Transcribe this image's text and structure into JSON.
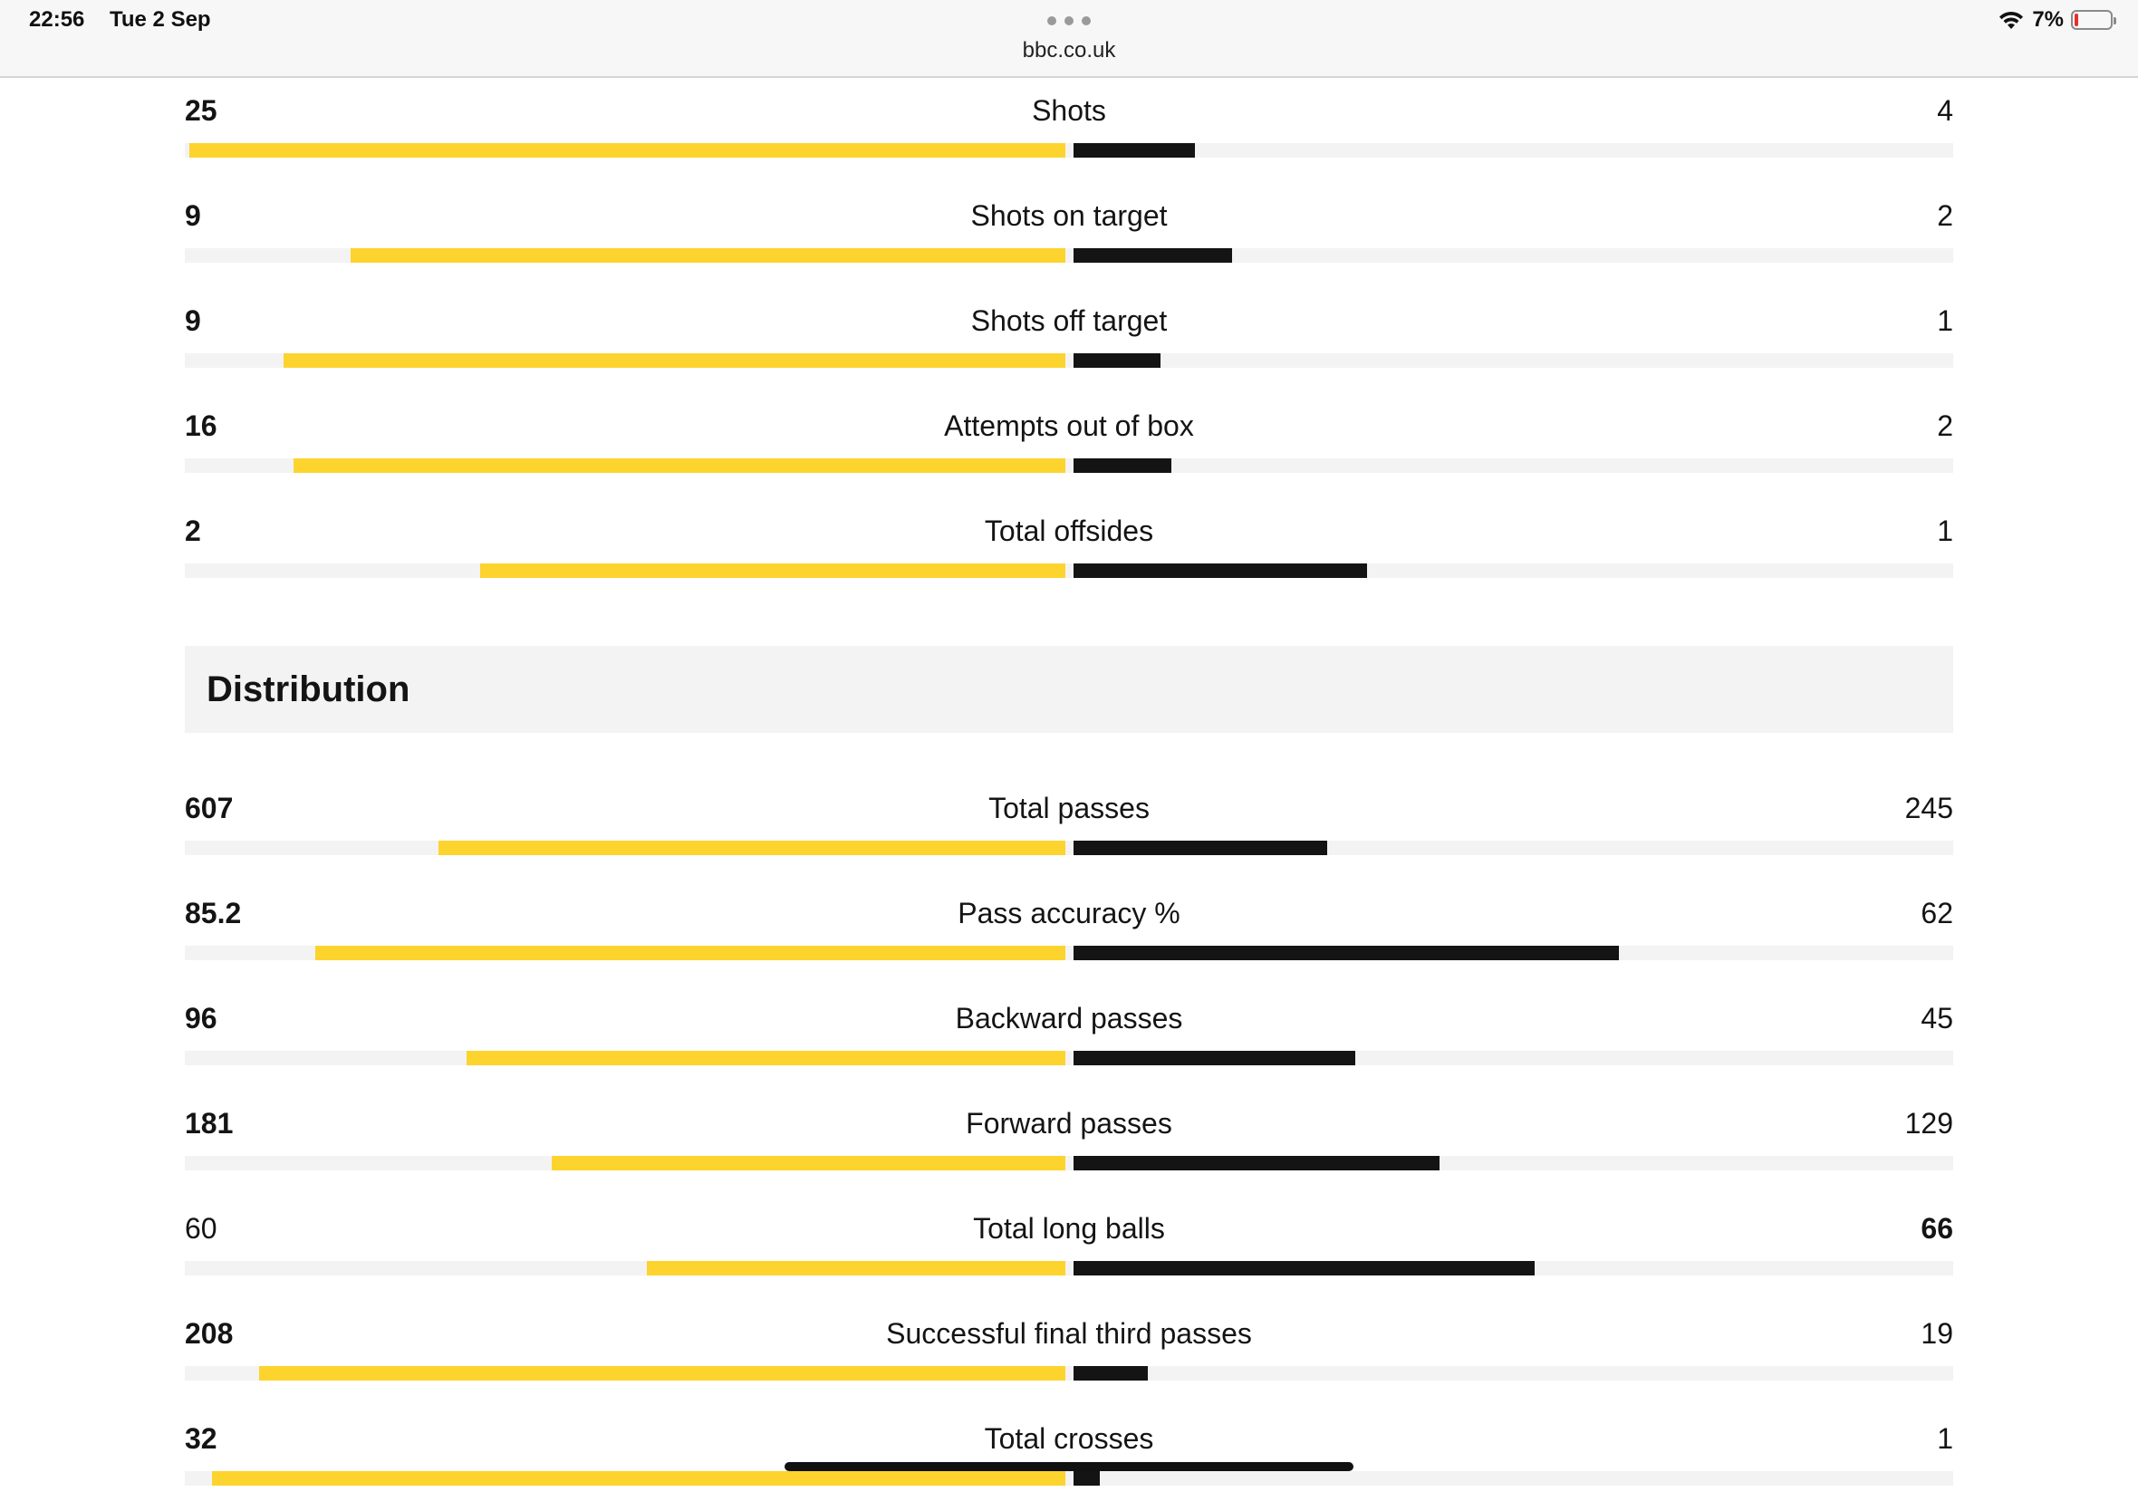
{
  "status_bar": {
    "time": "22:56",
    "date": "Tue 2 Sep",
    "url": "bbc.co.uk",
    "battery": "7%",
    "icons": [
      "more-dots-icon",
      "wifi-icon",
      "battery-icon"
    ]
  },
  "colors": {
    "home": "#fdd32e",
    "away": "#141414",
    "track": "#f3f3f3"
  },
  "stats_top": [
    {
      "label": "Shots",
      "home": "25",
      "away": "4",
      "home_frac": 0.995,
      "away_frac": 0.138,
      "leader": "home"
    },
    {
      "label": "Shots on target",
      "home": "9",
      "away": "2",
      "home_frac": 0.812,
      "away_frac": 0.18,
      "leader": "home"
    },
    {
      "label": "Shots off target",
      "home": "9",
      "away": "1",
      "home_frac": 0.888,
      "away_frac": 0.099,
      "leader": "home"
    },
    {
      "label": "Attempts out of box",
      "home": "16",
      "away": "2",
      "home_frac": 0.877,
      "away_frac": 0.111,
      "leader": "home"
    },
    {
      "label": "Total offsides",
      "home": "2",
      "away": "1",
      "home_frac": 0.665,
      "away_frac": 0.333,
      "leader": "home"
    }
  ],
  "distribution": {
    "title": "Distribution",
    "stats": [
      {
        "label": "Total passes",
        "home": "607",
        "away": "245",
        "home_frac": 0.712,
        "away_frac": 0.288,
        "leader": "home"
      },
      {
        "label": "Pass accuracy %",
        "home": "85.2",
        "away": "62",
        "home_frac": 0.852,
        "away_frac": 0.62,
        "leader": "home"
      },
      {
        "label": "Backward passes",
        "home": "96",
        "away": "45",
        "home_frac": 0.68,
        "away_frac": 0.32,
        "leader": "home"
      },
      {
        "label": "Forward passes",
        "home": "181",
        "away": "129",
        "home_frac": 0.584,
        "away_frac": 0.416,
        "leader": "home"
      },
      {
        "label": "Total long balls",
        "home": "60",
        "away": "66",
        "home_frac": 0.476,
        "away_frac": 0.524,
        "leader": "away"
      },
      {
        "label": "Successful final third passes",
        "home": "208",
        "away": "19",
        "home_frac": 0.916,
        "away_frac": 0.084,
        "leader": "home"
      },
      {
        "label": "Total crosses",
        "home": "32",
        "away": "1",
        "home_frac": 0.97,
        "away_frac": 0.03,
        "leader": "home"
      }
    ]
  }
}
